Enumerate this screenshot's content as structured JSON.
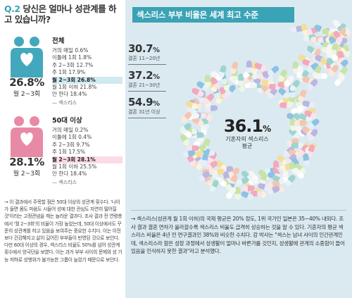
{
  "question": {
    "num": "Q.2",
    "text": "당신은 얼마나 성관계를 하고 있습니까?"
  },
  "colors": {
    "accent": "#3aa3b5",
    "male": "#43a8bd",
    "female": "#e88aa5",
    "panel_bg": "#dbeaf0"
  },
  "overall": {
    "group": "전체",
    "big_pct": "26.8%",
    "big_sub": "월 2~3회",
    "rows": [
      "거의 매일 0.6%",
      "이틀에 1회 1.8%",
      "주 2~3회 12.7%",
      "주 1회 17.9%",
      "월 2~3회 26.8%",
      "월 1회 이하 21.8%",
      "안 한다 18.4%"
    ],
    "source": "섹스리스"
  },
  "fifties": {
    "group": "50대 이상",
    "big_pct": "28.1%",
    "big_sub": "월 2~3회",
    "rows": [
      "거의 매일 0.2%",
      "이틀에 1회 0.4%",
      "주 2~3회 9.7%",
      "주 1회 17.5%",
      "월 2~3회 28.1%",
      "월 1회 이하 25.5%",
      "안 한다 18.4%"
    ],
    "source": "섹스리스"
  },
  "left_note": "→ 이 결과에서 주목할 점은 50대 이상의 성관계 횟수다. '나이가 들면 몸도 마음도 시들어 성에 대한 관심도 자연히 떨어질 것'이라는 고정관념을 깨는 놀라운 결과다. 조사 결과 전 연령층에서 '월 2~3회'의 비율이 가장 높았는데, 50대 이상에서도 꾸준히 성관계를 하고 있음을 보여주는 중요한 수치다. 이는 이전보다 건강해지고 삶이 길어진 부부들이 반영된 것으로 보인다. 다만 60대 이상의 경우, 섹스리스 비율도 50%를 넘어 성관계 횟수에서 양극단을 보였다. 이는 과거 부부 사이의 문제와 성 기능 저하로 성행위가 불가능한 그룹이 늘었기 때문으로 보인다.",
  "panel": {
    "header": "섹스리스 부부 비율은 세계 최고 수준",
    "stats": [
      {
        "value": "30.7",
        "unit": "%",
        "label": "결혼 11~20년"
      },
      {
        "value": "37.2",
        "unit": "%",
        "label": "결혼 21~30년"
      },
      {
        "value": "54.9",
        "unit": "%",
        "label": "결혼 31년 이상"
      }
    ],
    "center": {
      "value": "36.1",
      "unit": "%",
      "label1": "기혼자의 섹스리스",
      "label2": "평균"
    },
    "note": "→ 섹스리스(성관계 월 1회 이하)의 국제 평균은 20% 정도, 1위 국가인 일본은 35~40% 내외다. 조사 결과 결혼 연차가 올라갈수록 섹스리스 비율도 급격히 상승하는 것을 알 수 있다. 기혼자의 평균 섹스리스 비율은 4년 전 연구결과인 38%와 비슷한 수치다. 강 박사는 \"섹스는 남녀 사이의 인간관계인데, 섹스리스라 함은 성장 과정에서 성생활이 얼마나 바른가를 깃인지, 성생활에 관계의 소중함이 들어 있음을 인식하지 못한 결과\"라고 분석했다."
  }
}
